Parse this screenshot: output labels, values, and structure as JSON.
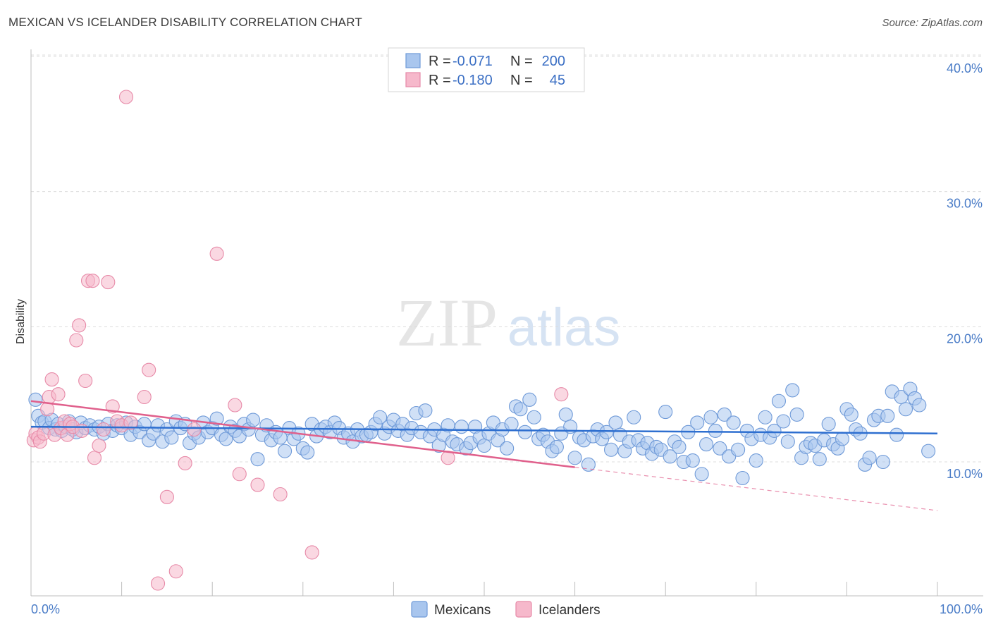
{
  "title": "MEXICAN VS ICELANDER DISABILITY CORRELATION CHART",
  "source": "Source: ZipAtlas.com",
  "watermark": {
    "zip": "ZIP",
    "atlas": "atlas"
  },
  "colors": {
    "mexicans_fill": "#a9c6ee",
    "mexicans_stroke": "#6f9ad8",
    "mexicans_line": "#2e6fd0",
    "icelanders_fill": "#f6b8cb",
    "icelanders_stroke": "#e78aa8",
    "icelanders_line": "#e0608c",
    "grid": "#dcdcdc",
    "tick_text": "#4a7cc7"
  },
  "legend": {
    "row1": {
      "r_label": "R =",
      "r_value": "-0.071",
      "n_label": "N =",
      "n_value": "200"
    },
    "row2": {
      "r_label": "R =",
      "r_value": "-0.180",
      "n_label": "N =",
      "n_value": "45"
    }
  },
  "chart_data": {
    "type": "scatter",
    "title": "MEXICAN VS ICELANDER DISABILITY CORRELATION CHART",
    "xlabel": "",
    "ylabel": "Disability",
    "xlim": [
      0,
      100
    ],
    "ylim": [
      0,
      42
    ],
    "x_tick_labels": [
      "0.0%",
      "100.0%"
    ],
    "y_ticks": [
      10,
      20,
      30,
      40
    ],
    "y_tick_labels": [
      "10.0%",
      "20.0%",
      "30.0%",
      "40.0%"
    ],
    "grid": true,
    "legend_position": "top-center",
    "series": [
      {
        "name": "Mexicans",
        "trend": {
          "x0": 0,
          "y0": 12.6,
          "x1": 100,
          "y1": 12.1
        },
        "points": [
          [
            0.5,
            14.6
          ],
          [
            0.8,
            13.4
          ],
          [
            1.2,
            12.9
          ],
          [
            1.5,
            13.0
          ],
          [
            2.0,
            12.5
          ],
          [
            2.3,
            13.1
          ],
          [
            2.7,
            12.4
          ],
          [
            3.0,
            12.8
          ],
          [
            3.4,
            12.3
          ],
          [
            3.8,
            12.6
          ],
          [
            4.2,
            13.0
          ],
          [
            4.6,
            12.4
          ],
          [
            5.0,
            12.2
          ],
          [
            5.5,
            12.9
          ],
          [
            6.0,
            12.5
          ],
          [
            6.5,
            12.7
          ],
          [
            7.0,
            12.4
          ],
          [
            7.5,
            12.6
          ],
          [
            8.0,
            12.1
          ],
          [
            8.5,
            12.8
          ],
          [
            9.0,
            12.3
          ],
          [
            9.5,
            12.7
          ],
          [
            10.0,
            12.5
          ],
          [
            10.5,
            12.9
          ],
          [
            11.0,
            12.0
          ],
          [
            11.5,
            12.6
          ],
          [
            12.0,
            12.2
          ],
          [
            12.5,
            12.8
          ],
          [
            13.0,
            11.6
          ],
          [
            13.5,
            12.1
          ],
          [
            14.0,
            12.7
          ],
          [
            14.5,
            11.5
          ],
          [
            15.0,
            12.4
          ],
          [
            15.5,
            11.8
          ],
          [
            16.0,
            13.0
          ],
          [
            16.5,
            12.5
          ],
          [
            17.0,
            12.8
          ],
          [
            17.5,
            11.4
          ],
          [
            18.0,
            12.1
          ],
          [
            18.5,
            11.8
          ],
          [
            19.0,
            12.9
          ],
          [
            19.5,
            12.2
          ],
          [
            20.0,
            12.5
          ],
          [
            20.5,
            13.2
          ],
          [
            21.0,
            12.0
          ],
          [
            21.5,
            11.7
          ],
          [
            22.0,
            12.6
          ],
          [
            22.5,
            12.3
          ],
          [
            23.0,
            11.9
          ],
          [
            23.5,
            12.8
          ],
          [
            24.0,
            12.4
          ],
          [
            24.5,
            13.1
          ],
          [
            25.0,
            10.2
          ],
          [
            25.5,
            12.0
          ],
          [
            26.0,
            12.7
          ],
          [
            26.5,
            11.6
          ],
          [
            27.0,
            12.2
          ],
          [
            27.5,
            11.8
          ],
          [
            28.0,
            10.8
          ],
          [
            28.5,
            12.5
          ],
          [
            29.0,
            11.7
          ],
          [
            29.5,
            12.1
          ],
          [
            30.0,
            11.0
          ],
          [
            30.5,
            10.7
          ],
          [
            31.0,
            12.8
          ],
          [
            31.5,
            11.9
          ],
          [
            32.0,
            12.4
          ],
          [
            32.5,
            12.6
          ],
          [
            33.0,
            12.2
          ],
          [
            33.5,
            12.9
          ],
          [
            34.0,
            12.5
          ],
          [
            34.5,
            11.8
          ],
          [
            35.0,
            12.1
          ],
          [
            35.5,
            11.5
          ],
          [
            36.0,
            12.4
          ],
          [
            36.5,
            11.9
          ],
          [
            37.0,
            12.0
          ],
          [
            37.5,
            12.2
          ],
          [
            38.0,
            12.8
          ],
          [
            38.5,
            13.3
          ],
          [
            39.0,
            12.1
          ],
          [
            39.5,
            12.6
          ],
          [
            40.0,
            13.1
          ],
          [
            40.5,
            12.3
          ],
          [
            41.0,
            12.8
          ],
          [
            41.5,
            12.0
          ],
          [
            42.0,
            12.5
          ],
          [
            42.5,
            13.6
          ],
          [
            43.0,
            12.2
          ],
          [
            43.5,
            13.8
          ],
          [
            44.0,
            11.9
          ],
          [
            44.5,
            12.4
          ],
          [
            45.0,
            11.2
          ],
          [
            45.5,
            12.0
          ],
          [
            46.0,
            12.7
          ],
          [
            46.5,
            11.5
          ],
          [
            47.0,
            11.3
          ],
          [
            47.5,
            12.6
          ],
          [
            48.0,
            11.0
          ],
          [
            48.5,
            11.4
          ],
          [
            49.0,
            12.6
          ],
          [
            49.5,
            11.8
          ],
          [
            50.0,
            11.2
          ],
          [
            50.5,
            12.1
          ],
          [
            51.0,
            12.9
          ],
          [
            51.5,
            11.6
          ],
          [
            52.0,
            12.4
          ],
          [
            52.5,
            11.0
          ],
          [
            53.0,
            12.8
          ],
          [
            53.5,
            14.1
          ],
          [
            54.0,
            13.9
          ],
          [
            54.5,
            12.2
          ],
          [
            55.0,
            14.6
          ],
          [
            55.5,
            13.3
          ],
          [
            56.0,
            11.7
          ],
          [
            56.5,
            12.0
          ],
          [
            57.0,
            11.5
          ],
          [
            57.5,
            10.8
          ],
          [
            58.0,
            11.1
          ],
          [
            58.5,
            12.1
          ],
          [
            59.0,
            13.5
          ],
          [
            59.5,
            12.6
          ],
          [
            60.0,
            10.3
          ],
          [
            60.5,
            11.8
          ],
          [
            61.0,
            11.6
          ],
          [
            61.5,
            9.8
          ],
          [
            62.0,
            11.9
          ],
          [
            62.5,
            12.4
          ],
          [
            63.0,
            11.7
          ],
          [
            63.5,
            12.2
          ],
          [
            64.0,
            10.9
          ],
          [
            64.5,
            12.9
          ],
          [
            65.0,
            12.0
          ],
          [
            65.5,
            10.8
          ],
          [
            66.0,
            11.5
          ],
          [
            66.5,
            13.3
          ],
          [
            67.0,
            11.6
          ],
          [
            67.5,
            11.0
          ],
          [
            68.0,
            11.4
          ],
          [
            68.5,
            10.6
          ],
          [
            69.0,
            11.1
          ],
          [
            69.5,
            10.9
          ],
          [
            70.0,
            13.7
          ],
          [
            70.5,
            10.4
          ],
          [
            71.0,
            11.5
          ],
          [
            71.5,
            11.1
          ],
          [
            72.0,
            10.0
          ],
          [
            72.5,
            12.2
          ],
          [
            73.0,
            10.1
          ],
          [
            73.5,
            12.9
          ],
          [
            74.0,
            9.1
          ],
          [
            74.5,
            11.3
          ],
          [
            75.0,
            13.3
          ],
          [
            75.5,
            12.3
          ],
          [
            76.0,
            11.0
          ],
          [
            76.5,
            13.5
          ],
          [
            77.0,
            10.4
          ],
          [
            77.5,
            12.9
          ],
          [
            78.0,
            10.9
          ],
          [
            78.5,
            8.8
          ],
          [
            79.0,
            12.3
          ],
          [
            79.5,
            11.7
          ],
          [
            80.0,
            10.1
          ],
          [
            80.5,
            12.0
          ],
          [
            81.0,
            13.3
          ],
          [
            81.5,
            11.8
          ],
          [
            82.0,
            12.3
          ],
          [
            82.5,
            14.5
          ],
          [
            83.0,
            13.0
          ],
          [
            83.5,
            11.5
          ],
          [
            84.0,
            15.3
          ],
          [
            84.5,
            13.5
          ],
          [
            85.0,
            10.3
          ],
          [
            85.5,
            11.1
          ],
          [
            86.0,
            11.4
          ],
          [
            86.5,
            11.2
          ],
          [
            87.0,
            10.2
          ],
          [
            87.5,
            11.6
          ],
          [
            88.0,
            12.8
          ],
          [
            88.5,
            11.3
          ],
          [
            89.0,
            11.0
          ],
          [
            89.5,
            11.7
          ],
          [
            90.0,
            13.9
          ],
          [
            90.5,
            13.5
          ],
          [
            91.0,
            12.4
          ],
          [
            91.5,
            12.1
          ],
          [
            92.0,
            9.8
          ],
          [
            92.5,
            10.3
          ],
          [
            93.0,
            13.1
          ],
          [
            93.5,
            13.4
          ],
          [
            94.0,
            10.0
          ],
          [
            94.5,
            13.4
          ],
          [
            95.0,
            15.2
          ],
          [
            95.5,
            12.0
          ],
          [
            96.0,
            14.8
          ],
          [
            96.5,
            13.9
          ],
          [
            97.0,
            15.4
          ],
          [
            97.5,
            14.7
          ],
          [
            98.0,
            14.2
          ],
          [
            99.0,
            10.8
          ]
        ]
      },
      {
        "name": "Icelanders",
        "trend": {
          "x0": 0,
          "y0": 14.5,
          "x1": 60,
          "y1": 9.6,
          "dash_x1": 100,
          "dash_y1": 6.4
        },
        "points": [
          [
            0.3,
            11.6
          ],
          [
            0.5,
            12.1
          ],
          [
            0.8,
            11.8
          ],
          [
            1.0,
            11.5
          ],
          [
            1.4,
            12.1
          ],
          [
            1.8,
            13.9
          ],
          [
            2.0,
            14.8
          ],
          [
            2.3,
            16.1
          ],
          [
            2.6,
            12.0
          ],
          [
            3.0,
            15.0
          ],
          [
            3.3,
            12.5
          ],
          [
            3.7,
            13.0
          ],
          [
            4.0,
            12.0
          ],
          [
            4.3,
            12.8
          ],
          [
            4.6,
            12.6
          ],
          [
            5.0,
            19.0
          ],
          [
            5.3,
            20.1
          ],
          [
            5.6,
            12.3
          ],
          [
            6.0,
            16.0
          ],
          [
            6.3,
            23.4
          ],
          [
            6.8,
            23.4
          ],
          [
            7.0,
            10.3
          ],
          [
            7.5,
            11.2
          ],
          [
            8.0,
            12.4
          ],
          [
            8.5,
            23.3
          ],
          [
            9.0,
            14.1
          ],
          [
            9.5,
            13.0
          ],
          [
            10.0,
            12.7
          ],
          [
            10.5,
            37.0
          ],
          [
            11.0,
            12.9
          ],
          [
            12.5,
            14.8
          ],
          [
            13.0,
            16.8
          ],
          [
            14.0,
            1.0
          ],
          [
            15.0,
            7.4
          ],
          [
            16.0,
            1.9
          ],
          [
            17.0,
            9.9
          ],
          [
            18.0,
            12.4
          ],
          [
            20.5,
            25.4
          ],
          [
            22.5,
            14.2
          ],
          [
            23.0,
            9.1
          ],
          [
            25.0,
            8.3
          ],
          [
            27.5,
            7.6
          ],
          [
            31.0,
            3.3
          ],
          [
            46.0,
            10.3
          ],
          [
            58.5,
            15.0
          ]
        ]
      }
    ]
  }
}
